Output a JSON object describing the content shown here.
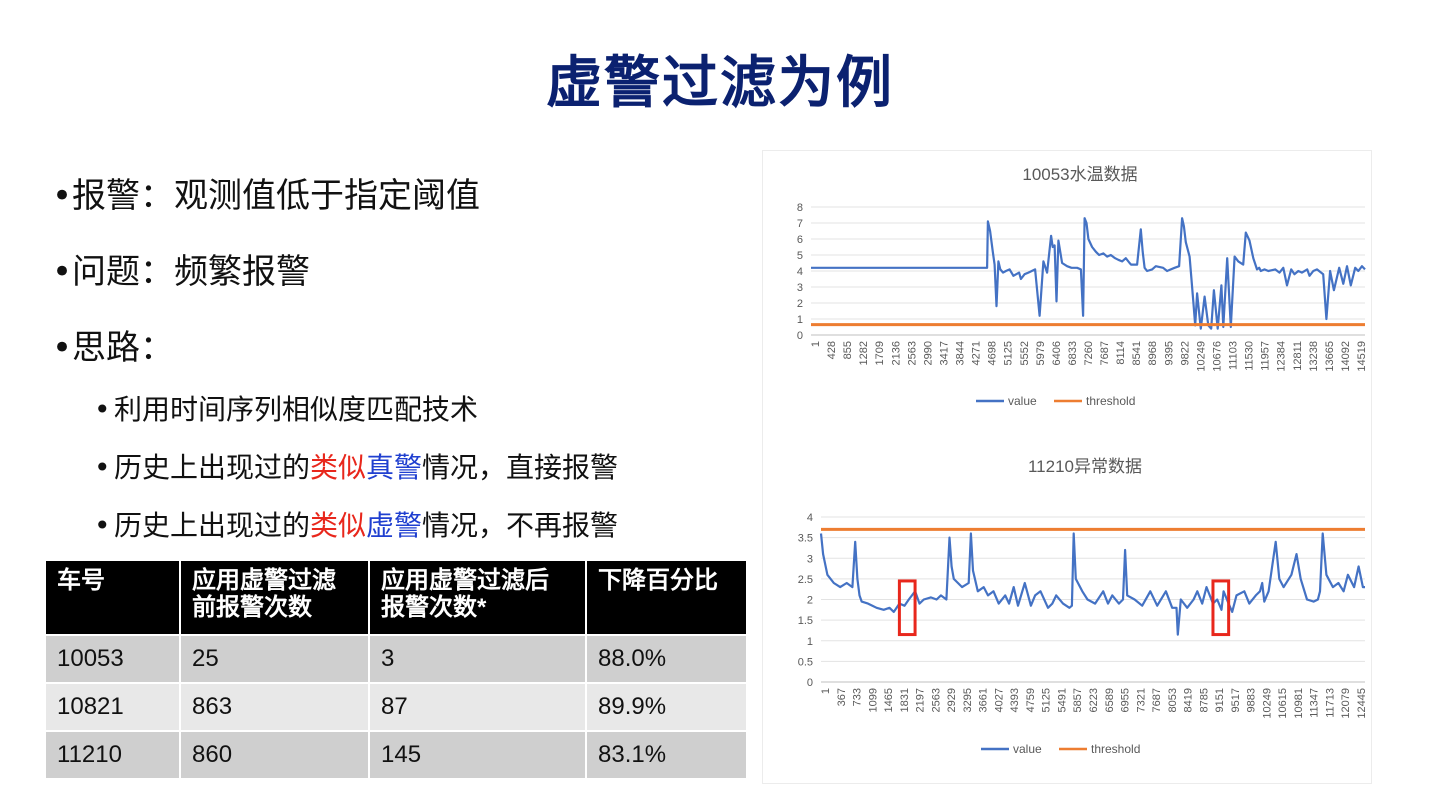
{
  "slide": {
    "title": "虚警过滤为例"
  },
  "bullets": [
    {
      "text": "报警：观测值低于指定阈值"
    },
    {
      "text": "问题：频繁报警"
    },
    {
      "text": "思路："
    }
  ],
  "sub_bullets": [
    {
      "text": "利用时间序列相似度匹配技术"
    },
    {
      "parts": [
        "历史上出现过的",
        "类似",
        "真警",
        "情况，直接报警"
      ]
    },
    {
      "parts": [
        "历史上出现过的",
        "类似",
        "虚警",
        "情况，不再报警"
      ]
    }
  ],
  "colors": {
    "title": "#0b2170",
    "red": "#e8271c",
    "blue": "#1f3fd0",
    "series_value": "#4472c4",
    "series_threshold": "#ed7d31"
  },
  "table": {
    "headers": [
      "车号",
      "应用虚警过滤前报警次数",
      "应用虚警过滤后报警次数*",
      "下降百分比"
    ],
    "header_lines": [
      [
        "车号"
      ],
      [
        "应用虚警过滤",
        "前报警次数"
      ],
      [
        "应用虚警过滤后",
        "报警次数*"
      ],
      [
        "下降百分比"
      ]
    ],
    "rows": [
      [
        "10053",
        "25",
        "3",
        "88.0%"
      ],
      [
        "10821",
        "863",
        "87",
        "89.9%"
      ],
      [
        "11210",
        "860",
        "145",
        "83.1%"
      ]
    ]
  },
  "chart_data": [
    {
      "type": "line",
      "title": "10053水温数据",
      "xlabel": "",
      "ylabel": "",
      "ylim": [
        0,
        8
      ],
      "yticks": [
        "0",
        "1",
        "2",
        "3",
        "4",
        "5",
        "6",
        "7",
        "8"
      ],
      "xticks": [
        "1",
        "428",
        "855",
        "1282",
        "1709",
        "2136",
        "2563",
        "2990",
        "3417",
        "3844",
        "4271",
        "4698",
        "5125",
        "5552",
        "5979",
        "6406",
        "6833",
        "7260",
        "7687",
        "8114",
        "8541",
        "8968",
        "9395",
        "9822",
        "10249",
        "10676",
        "11103",
        "11530",
        "11957",
        "12384",
        "12811",
        "13238",
        "13665",
        "14092",
        "14519"
      ],
      "xrange": [
        1,
        14780
      ],
      "grid": true,
      "legend": "bottom",
      "series": [
        {
          "name": "value",
          "x": [
            1,
            4698,
            4720,
            4780,
            4850,
            4900,
            4950,
            5000,
            5050,
            5125,
            5200,
            5300,
            5400,
            5552,
            5600,
            5700,
            5800,
            5979,
            6100,
            6200,
            6300,
            6406,
            6450,
            6500,
            6550,
            6600,
            6700,
            6833,
            6950,
            7100,
            7200,
            7260,
            7300,
            7350,
            7400,
            7500,
            7600,
            7687,
            7800,
            7900,
            8000,
            8114,
            8200,
            8300,
            8400,
            8500,
            8541,
            8700,
            8800,
            8850,
            8900,
            8968,
            9100,
            9200,
            9395,
            9500,
            9600,
            9700,
            9822,
            9900,
            9950,
            10000,
            10100,
            10200,
            10249,
            10300,
            10400,
            10500,
            10600,
            10676,
            10750,
            10850,
            10950,
            11000,
            11103,
            11200,
            11300,
            11400,
            11530,
            11600,
            11700,
            11800,
            11900,
            11957,
            12000,
            12100,
            12200,
            12384,
            12500,
            12600,
            12700,
            12811,
            12900,
            13000,
            13100,
            13238,
            13300,
            13400,
            13500,
            13665,
            13750,
            13850,
            13950,
            14092,
            14200,
            14300,
            14400,
            14519,
            14600,
            14700,
            14780
          ],
          "values": [
            4.2,
            4.2,
            7.1,
            6.5,
            5.2,
            4.4,
            1.8,
            4.6,
            4.1,
            3.9,
            4.0,
            4.1,
            3.7,
            3.9,
            3.5,
            3.8,
            3.9,
            4.1,
            1.2,
            4.6,
            3.9,
            6.2,
            5.5,
            5.6,
            2.1,
            5.9,
            4.5,
            4.3,
            4.2,
            4.2,
            4.1,
            1.2,
            7.3,
            7.0,
            6.0,
            5.5,
            5.2,
            5.0,
            5.1,
            4.9,
            5.0,
            4.8,
            4.7,
            4.6,
            4.8,
            4.5,
            4.4,
            4.4,
            6.6,
            5.2,
            4.2,
            4.0,
            4.1,
            4.3,
            4.2,
            4.0,
            4.1,
            4.2,
            4.3,
            7.3,
            6.8,
            5.8,
            4.9,
            2.1,
            0.6,
            2.6,
            0.4,
            2.4,
            0.6,
            0.4,
            2.8,
            0.4,
            3.1,
            0.5,
            4.8,
            0.5,
            4.9,
            4.6,
            4.4,
            6.4,
            5.9,
            4.8,
            4.1,
            4.2,
            4.0,
            4.1,
            4.0,
            4.1,
            3.9,
            4.2,
            3.1,
            4.1,
            3.8,
            4.0,
            3.9,
            4.1,
            3.7,
            4.0,
            4.1,
            3.8,
            1.0,
            4.0,
            2.8,
            4.2,
            3.2,
            4.3,
            3.1,
            4.2,
            4.0,
            4.3,
            4.1
          ]
        },
        {
          "name": "threshold",
          "x": [
            1,
            14780
          ],
          "values": [
            0.65,
            0.65
          ]
        }
      ]
    },
    {
      "type": "line",
      "title": "11210异常数据",
      "xlabel": "",
      "ylabel": "",
      "ylim": [
        0,
        4
      ],
      "yticks": [
        "0",
        "0.5",
        "1",
        "1.5",
        "2",
        "2.5",
        "3",
        "3.5",
        "4"
      ],
      "xticks": [
        "1",
        "367",
        "733",
        "1099",
        "1465",
        "1831",
        "2197",
        "2563",
        "2929",
        "3295",
        "3661",
        "4027",
        "4393",
        "4759",
        "5125",
        "5491",
        "5857",
        "6223",
        "6589",
        "6955",
        "7321",
        "7687",
        "8053",
        "8419",
        "8785",
        "9151",
        "9517",
        "9883",
        "10249",
        "10615",
        "10981",
        "11347",
        "11713",
        "12079",
        "12445"
      ],
      "xrange": [
        1,
        12700
      ],
      "grid": true,
      "legend": "bottom",
      "series": [
        {
          "name": "value",
          "x": [
            1,
            50,
            150,
            300,
            450,
            600,
            733,
            800,
            850,
            900,
            950,
            1099,
            1200,
            1300,
            1465,
            1600,
            1700,
            1831,
            1950,
            2050,
            2197,
            2300,
            2400,
            2563,
            2700,
            2800,
            2929,
            3000,
            3050,
            3100,
            3295,
            3450,
            3500,
            3550,
            3661,
            3800,
            3900,
            4027,
            4150,
            4300,
            4393,
            4500,
            4600,
            4759,
            4900,
            5000,
            5125,
            5300,
            5400,
            5491,
            5650,
            5800,
            5857,
            5900,
            5950,
            6100,
            6223,
            6400,
            6589,
            6700,
            6800,
            6955,
            7050,
            7100,
            7150,
            7321,
            7500,
            7687,
            7850,
            8053,
            8200,
            8300,
            8330,
            8400,
            8550,
            8700,
            8785,
            8900,
            9000,
            9151,
            9250,
            9350,
            9400,
            9517,
            9600,
            9700,
            9883,
            10000,
            10150,
            10249,
            10300,
            10350,
            10450,
            10615,
            10700,
            10800,
            10981,
            11100,
            11200,
            11347,
            11500,
            11600,
            11650,
            11713,
            11800,
            11950,
            12079,
            12200,
            12300,
            12445,
            12550,
            12650,
            12700
          ],
          "values": [
            3.6,
            3.1,
            2.6,
            2.4,
            2.3,
            2.4,
            2.3,
            3.4,
            2.5,
            2.1,
            1.95,
            1.9,
            1.85,
            1.8,
            1.75,
            1.8,
            1.7,
            1.9,
            1.85,
            2.0,
            2.2,
            1.9,
            2.0,
            2.05,
            2.0,
            2.1,
            2.0,
            3.5,
            2.8,
            2.5,
            2.3,
            2.4,
            3.6,
            2.7,
            2.2,
            2.3,
            2.1,
            2.2,
            1.9,
            2.1,
            1.9,
            2.3,
            1.85,
            2.4,
            1.85,
            2.1,
            2.2,
            1.8,
            1.9,
            2.1,
            1.9,
            1.8,
            1.85,
            3.6,
            2.5,
            2.2,
            2.0,
            1.9,
            2.2,
            1.9,
            2.1,
            1.9,
            2.0,
            3.2,
            2.1,
            2.0,
            1.85,
            2.2,
            1.85,
            2.2,
            1.8,
            1.8,
            1.15,
            2.0,
            1.8,
            2.0,
            2.2,
            1.9,
            2.3,
            1.9,
            2.0,
            1.75,
            2.2,
            1.9,
            1.7,
            2.1,
            2.2,
            1.9,
            2.1,
            2.2,
            2.4,
            1.95,
            2.2,
            3.4,
            2.5,
            2.3,
            2.6,
            3.1,
            2.5,
            2.0,
            1.95,
            2.0,
            2.2,
            3.6,
            2.6,
            2.3,
            2.4,
            2.2,
            2.6,
            2.3,
            2.8,
            2.3,
            2.3
          ]
        },
        {
          "name": "threshold",
          "x": [
            1,
            12700
          ],
          "values": [
            3.7,
            3.7
          ]
        }
      ],
      "highlights": [
        {
          "x": [
            1831,
            2197
          ],
          "y": [
            1.15,
            2.45
          ]
        },
        {
          "x": [
            9151,
            9517
          ],
          "y": [
            1.15,
            2.45
          ]
        }
      ]
    }
  ]
}
